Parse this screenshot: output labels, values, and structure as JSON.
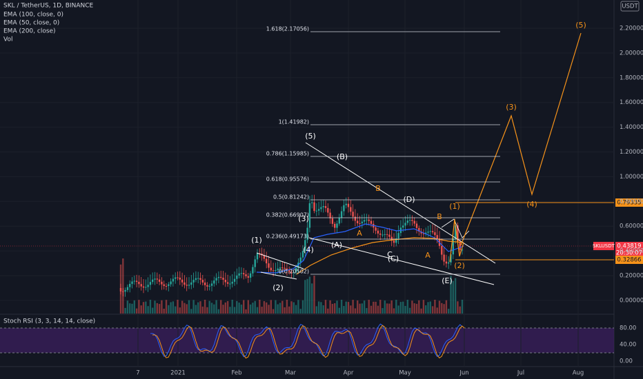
{
  "header": {
    "symbol": "SKL / TetherUS, 1D, BINANCE",
    "indicators": [
      "EMA (100, close, 0)",
      "EMA (50, close, 0)",
      "EMA (200, close)",
      "Vol"
    ]
  },
  "price_axis": {
    "currency": "USDT",
    "ticks": [
      "2.20000",
      "2.00000",
      "1.80000",
      "1.60000",
      "1.40000",
      "1.20000",
      "1.00000",
      "0.80000",
      "0.60000",
      "0.40000",
      "0.20000",
      "0.00000"
    ]
  },
  "time_axis": {
    "labels": [
      "7",
      "2021",
      "Feb",
      "Mar",
      "Apr",
      "May",
      "Jun",
      "Jul",
      "Aug"
    ]
  },
  "fib_levels": [
    "1.618(2.17056)",
    "1(1.41982)",
    "0.786(1.15985)",
    "0.618(0.95576)",
    "0.5(0.81242)",
    "0.382(0.66907)",
    "0.236(0.49173)",
    "0(0.20502)"
  ],
  "wave_labels": {
    "white": [
      "(1)",
      "(2)",
      "(3)",
      "(4)",
      "(5)",
      "(A)",
      "(B)",
      "(C)",
      "(D)",
      "(E)",
      "C"
    ],
    "orange": [
      "A",
      "B",
      "B",
      "A",
      "(1)",
      "(2)",
      "(3)",
      "(4)",
      "(5)"
    ]
  },
  "price_tags": {
    "symbol": "SKLUSDT",
    "last": "0.43819",
    "countdown": "20:30:07",
    "support": "0.32866",
    "resistance": "0.79335"
  },
  "rsi": {
    "title": "Stoch RSI (3, 3, 14, 14, close)",
    "ticks": [
      "80.00",
      "40.00",
      "0.00"
    ]
  }
}
